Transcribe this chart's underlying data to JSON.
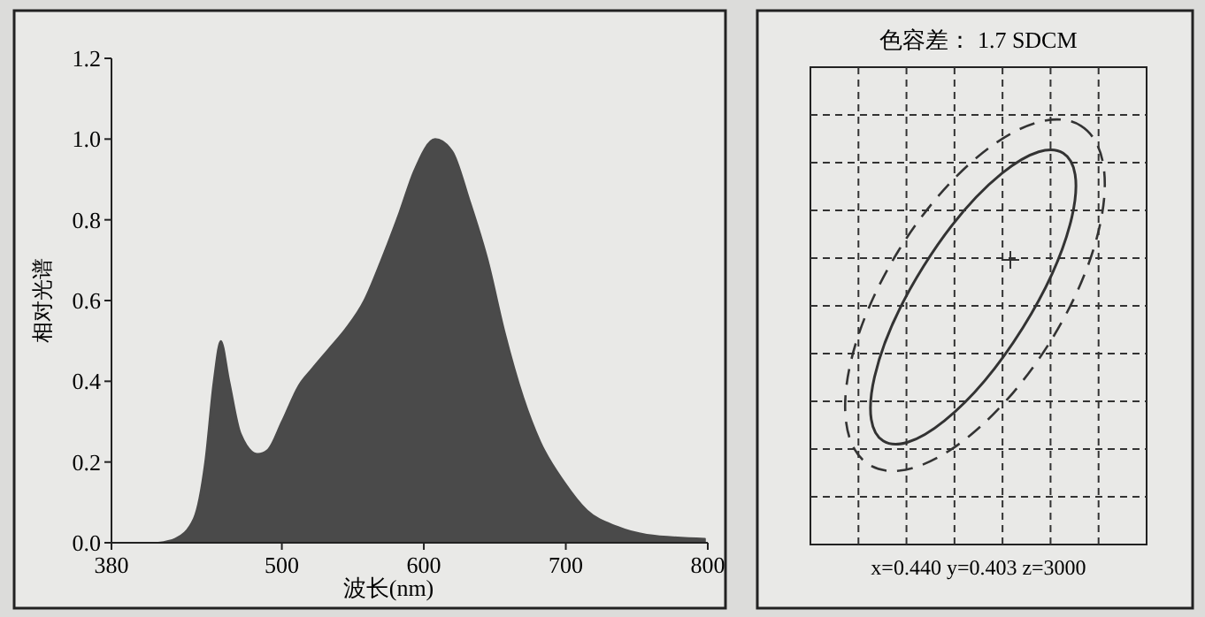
{
  "chart_data": [
    {
      "type": "area",
      "xlabel": "波长(nm)",
      "ylabel": "相对光谱",
      "xlim": [
        380,
        800
      ],
      "ylim": [
        0,
        1.2
      ],
      "xticks": [
        380,
        500,
        600,
        700,
        800
      ],
      "yticks": [
        {
          "value": 0,
          "label": "0.0"
        },
        {
          "value": 0.2,
          "label": "0.2"
        },
        {
          "value": 0.4,
          "label": "0.4"
        },
        {
          "value": 0.6,
          "label": "0.6"
        },
        {
          "value": 0.8,
          "label": "0.8"
        },
        {
          "value": 1,
          "label": "1.0"
        },
        {
          "value": 1.2,
          "label": "1.2"
        }
      ],
      "grid": false,
      "series": [
        {
          "color": "#4a4a4a",
          "x": [
            413,
            425,
            438,
            446,
            452,
            457,
            463,
            471,
            483,
            490,
            500,
            512,
            521,
            533,
            545,
            558,
            570,
            583,
            593,
            608,
            620,
            632,
            645,
            657,
            670,
            682,
            699,
            715,
            736,
            757,
            798
          ],
          "values": [
            0,
            0.01,
            0.06,
            0.2,
            0.4,
            0.5,
            0.4,
            0.27,
            0.22,
            0.23,
            0.3,
            0.39,
            0.43,
            0.48,
            0.53,
            0.6,
            0.7,
            0.82,
            0.92,
            1.0,
            0.97,
            0.85,
            0.7,
            0.52,
            0.36,
            0.25,
            0.15,
            0.08,
            0.04,
            0.02,
            0.01
          ]
        }
      ]
    },
    {
      "type": "other",
      "title": "色容差： 1.7 SDCM",
      "annotations": [
        "x=0.440 y=0.403 z=3000"
      ]
    }
  ]
}
